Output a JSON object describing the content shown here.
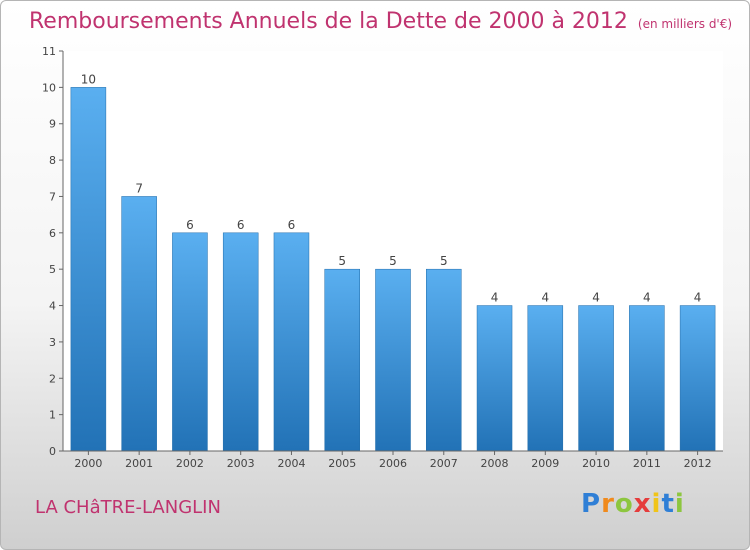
{
  "header": {
    "title": "Remboursements Annuels de la Dette de 2000 à 2012",
    "subtitle": "(en milliers d'€)"
  },
  "footer": {
    "city": "LA CHâTRE-LANGLIN",
    "logo": {
      "letters": [
        "P",
        "r",
        "o",
        "x",
        "i",
        "t",
        "i"
      ],
      "colors": [
        "#2f7fd6",
        "#f08a1c",
        "#8dc63f",
        "#e53c3c",
        "#f0c419",
        "#2f7fd6",
        "#8dc63f"
      ]
    }
  },
  "chart_data": {
    "type": "bar",
    "categories": [
      "2000",
      "2001",
      "2002",
      "2003",
      "2004",
      "2005",
      "2006",
      "2007",
      "2008",
      "2009",
      "2010",
      "2011",
      "2012"
    ],
    "values": [
      10,
      7,
      6,
      6,
      6,
      5,
      5,
      5,
      4,
      4,
      4,
      4,
      4
    ],
    "data_labels": [
      "10",
      "7",
      "6",
      "6",
      "6",
      "5",
      "5",
      "5",
      "4",
      "4",
      "4",
      "4",
      "4"
    ],
    "yticks": [
      0,
      1,
      2,
      3,
      4,
      5,
      6,
      7,
      8,
      9,
      10,
      11
    ],
    "ylim": [
      0,
      11
    ],
    "grid": false,
    "bar_color_top": "#5aaff0",
    "bar_color_bottom": "#2272b6"
  }
}
